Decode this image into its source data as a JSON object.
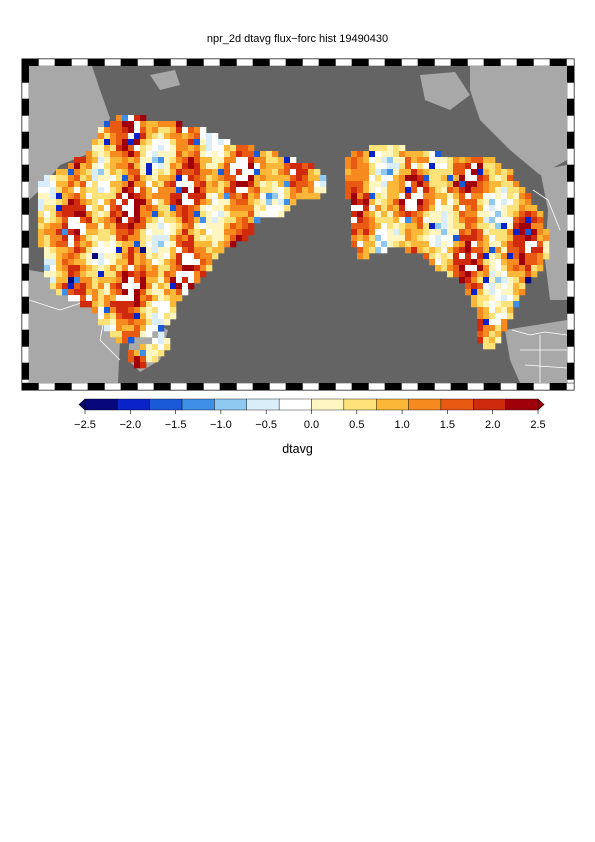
{
  "title": "npr_2d dtavg flux−forc hist 19490430",
  "colorbar": {
    "label": "dtavg",
    "ticks": [
      "−2.5",
      "−2.0",
      "−1.5",
      "−1.0",
      "−0.5",
      "0.0",
      "0.5",
      "1.0",
      "1.5",
      "2.0",
      "2.5"
    ],
    "range": [
      -2.5,
      2.5
    ],
    "colors": [
      "#08087a",
      "#0a23c8",
      "#1a5ad8",
      "#3f8fe8",
      "#8fc8f0",
      "#d9eef8",
      "#ffffff",
      "#fff6c2",
      "#fde27a",
      "#fbb838",
      "#f68a1e",
      "#e85a12",
      "#d02a0c",
      "#a0000a"
    ]
  },
  "map": {
    "ocean_color": "#646464",
    "land_mask_color": "#a8a8a8"
  }
}
